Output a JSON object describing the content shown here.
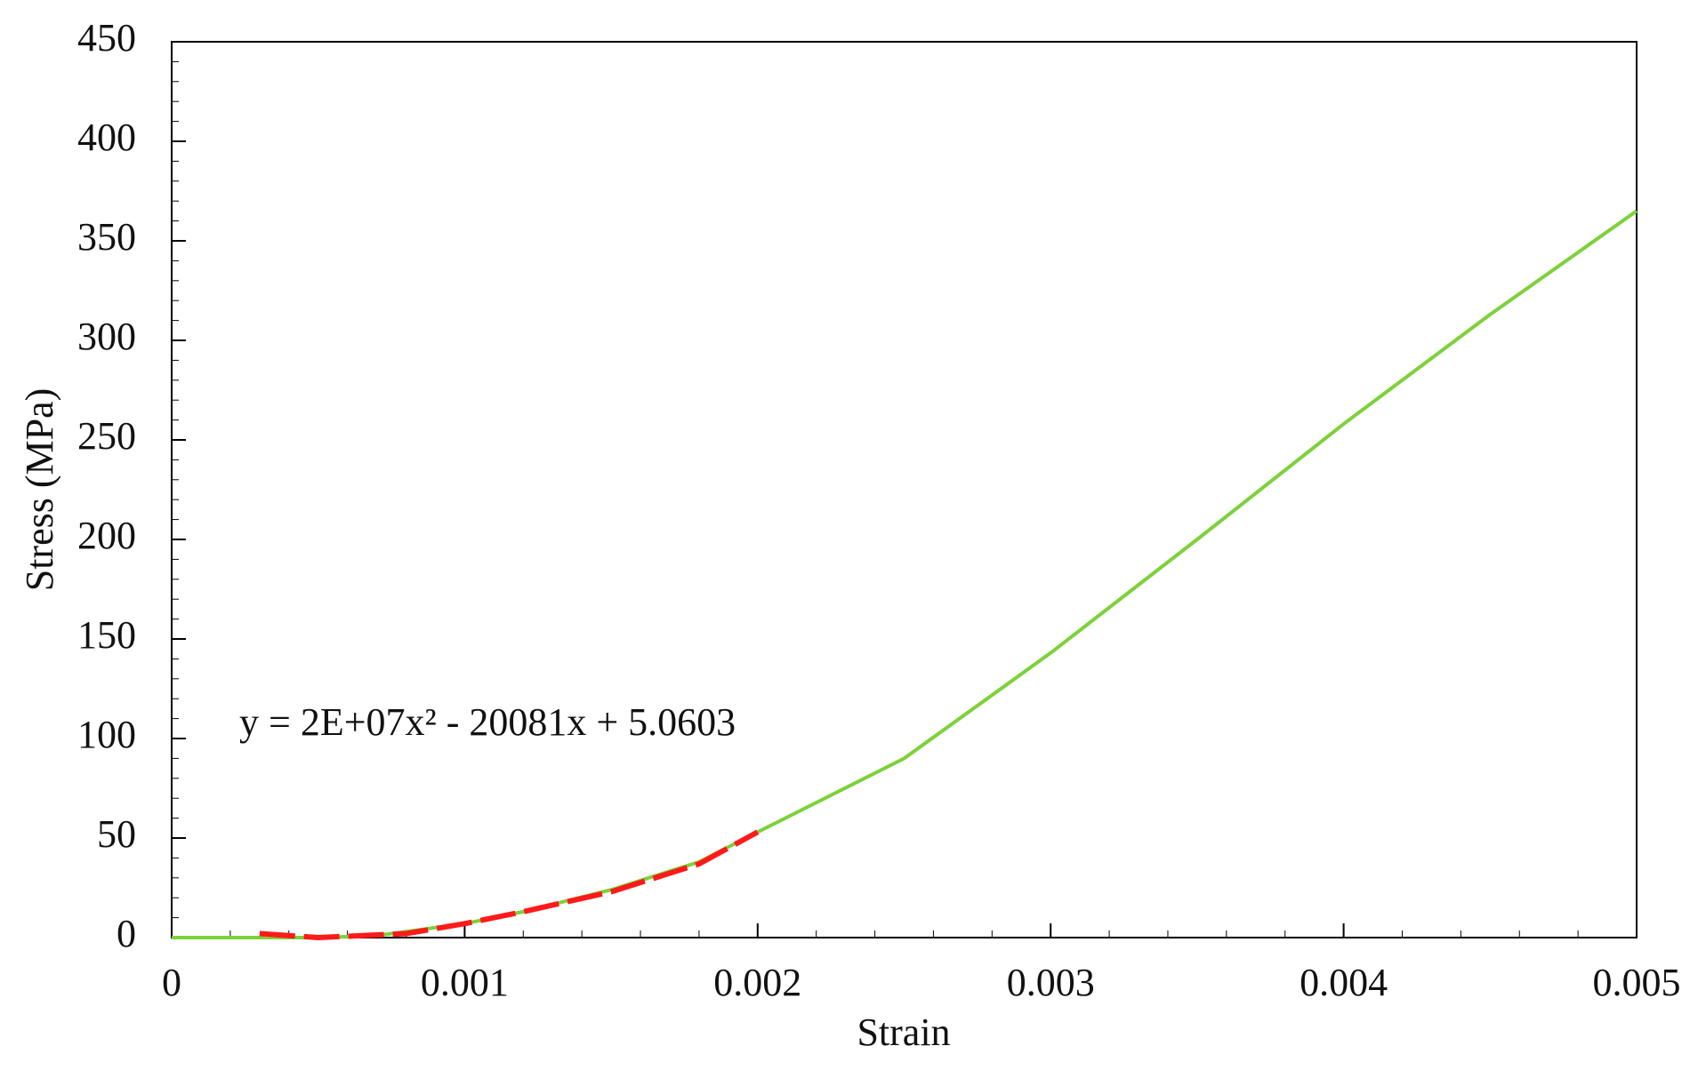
{
  "chart_data": {
    "type": "line",
    "x_label": "Strain",
    "y_label": "Stress (MPa)",
    "annotation": "y = 2E+07x² - 20081x + 5.0603",
    "xlim": [
      0,
      0.005
    ],
    "ylim": [
      0,
      450
    ],
    "xticks": [
      0,
      0.001,
      0.002,
      0.003,
      0.004,
      0.005
    ],
    "yticks": [
      0,
      50,
      100,
      150,
      200,
      250,
      300,
      350,
      400,
      450
    ],
    "series": [
      {
        "color": "#7dd13a",
        "dashed": false,
        "x": [
          0,
          0.0003,
          0.0005,
          0.0007,
          0.001,
          0.0012,
          0.0015,
          0.0018,
          0.002,
          0.0025,
          0.003,
          0.0035,
          0.004,
          0.0045,
          0.005
        ],
        "values": [
          0,
          0,
          0,
          1,
          7,
          13,
          24,
          38,
          53,
          90,
          143,
          200,
          258,
          313,
          365
        ]
      },
      {
        "color": "#ff1a1a",
        "dashed": true,
        "x": [
          0.0003,
          0.0005,
          0.0008,
          0.001,
          0.0012,
          0.0015,
          0.0018,
          0.002
        ],
        "values": [
          2,
          0,
          2,
          7,
          13,
          23,
          37,
          53
        ]
      }
    ]
  }
}
